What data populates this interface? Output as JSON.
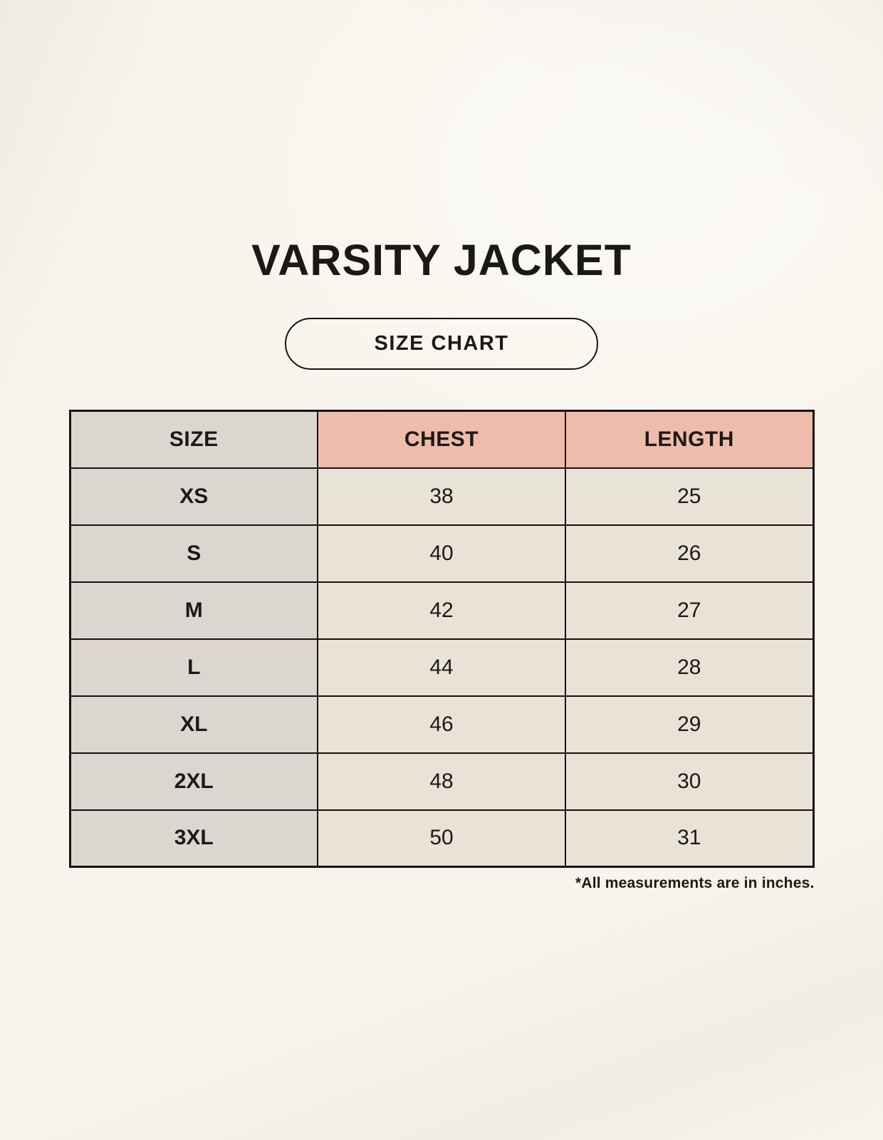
{
  "page": {
    "title": "VARSITY JACKET",
    "size_chart_badge": "SIZE CHART",
    "footnote": "*All measurements are in inches."
  },
  "chart_data": {
    "type": "table",
    "title": "VARSITY JACKET",
    "subtitle": "SIZE CHART",
    "columns": [
      "SIZE",
      "CHEST",
      "LENGTH"
    ],
    "rows": [
      [
        "XS",
        38,
        25
      ],
      [
        "S",
        40,
        26
      ],
      [
        "M",
        42,
        27
      ],
      [
        "L",
        44,
        28
      ],
      [
        "XL",
        46,
        29
      ],
      [
        "2XL",
        48,
        30
      ],
      [
        "3XL",
        50,
        31
      ]
    ],
    "note": "*All measurements are in inches."
  },
  "colors": {
    "page_bg": "#F8F4EC",
    "header_accent_pink": "#EFBBAB",
    "size_column_gray": "#DCD6D0",
    "value_cell_cream": "#E9E3D7",
    "table_border": "#15120F",
    "text": "#1B1916"
  }
}
